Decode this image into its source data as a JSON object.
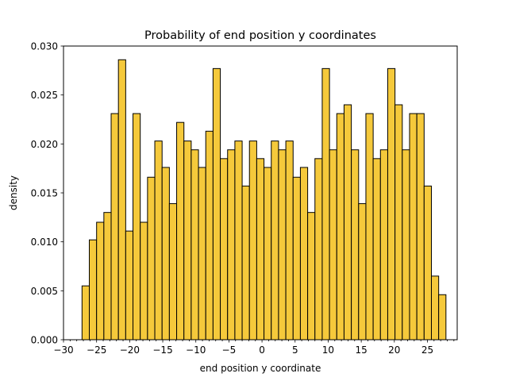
{
  "chart_data": {
    "type": "bar",
    "title": "Probability of end position y coordinates",
    "xlabel": "end position y coordinate",
    "ylabel": "density",
    "xlim": [
      -30,
      29.5
    ],
    "ylim": [
      0,
      0.03
    ],
    "xticks": [
      -30,
      -25,
      -20,
      -15,
      -10,
      -5,
      0,
      5,
      10,
      15,
      20,
      25
    ],
    "xtick_labels": [
      "−30",
      "−25",
      "−20",
      "−15",
      "−10",
      "−5",
      "0",
      "5",
      "10",
      "15",
      "20",
      "25"
    ],
    "yticks": [
      0,
      0.005,
      0.01,
      0.015,
      0.02,
      0.025,
      0.03
    ],
    "ytick_labels": [
      "0.000",
      "0.005",
      "0.010",
      "0.015",
      "0.020",
      "0.025",
      "0.030"
    ],
    "bin_start": -27.2,
    "bin_width": 1.1,
    "values": [
      0.0055,
      0.0102,
      0.012,
      0.013,
      0.0231,
      0.0286,
      0.0111,
      0.0231,
      0.012,
      0.0166,
      0.0203,
      0.0176,
      0.0139,
      0.0222,
      0.0203,
      0.0194,
      0.0176,
      0.0213,
      0.0277,
      0.0185,
      0.0194,
      0.0203,
      0.0157,
      0.0203,
      0.0185,
      0.0176,
      0.0203,
      0.0194,
      0.0203,
      0.0166,
      0.0176,
      0.013,
      0.0185,
      0.0277,
      0.0194,
      0.0231,
      0.024,
      0.0194,
      0.0139,
      0.0231,
      0.0185,
      0.0194,
      0.0277,
      0.024,
      0.0194,
      0.0231,
      0.0231,
      0.0157,
      0.0065,
      0.0046
    ],
    "bar_color": "#f5c93b",
    "edge_color": "#000000",
    "grid": false
  }
}
